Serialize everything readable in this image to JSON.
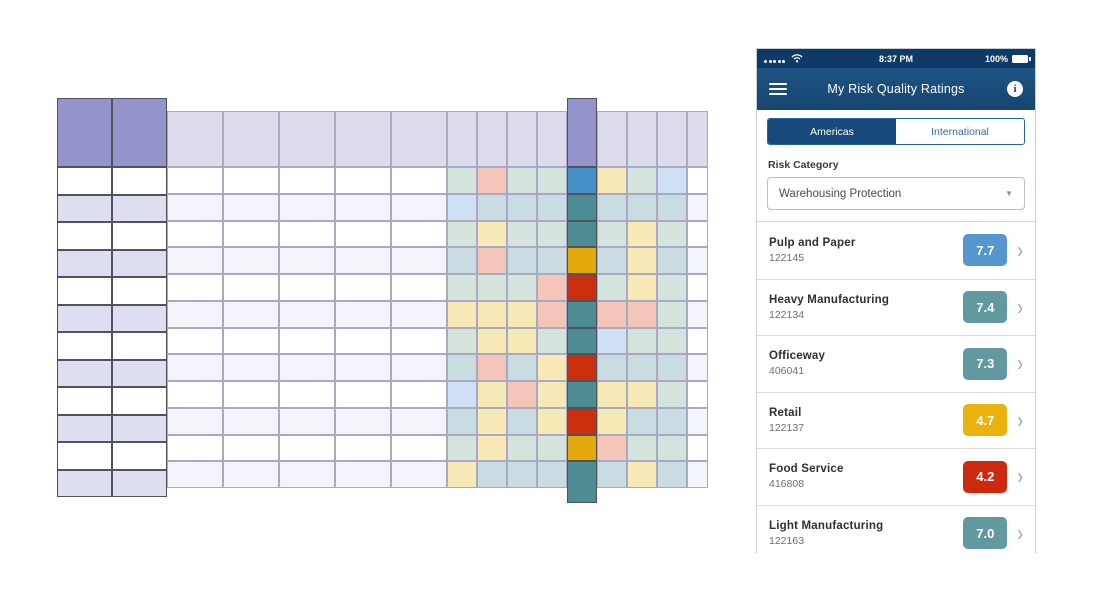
{
  "phone": {
    "status_bar": {
      "time": "8:37 PM",
      "battery": "100%"
    },
    "nav": {
      "title": "My Risk Quality Ratings"
    },
    "tabs": [
      {
        "label": "Americas",
        "selected": true
      },
      {
        "label": "International",
        "selected": false
      }
    ],
    "risk_category_label": "Risk Category",
    "risk_category_value": "Warehousing Protection",
    "ratings": [
      {
        "name": "Pulp and Paper",
        "id": "122145",
        "score": "7.7",
        "color": "#5596cf"
      },
      {
        "name": "Heavy Manufacturing",
        "id": "122134",
        "score": "7.4",
        "color": "#62989f"
      },
      {
        "name": "Officeway",
        "id": "406041",
        "score": "7.3",
        "color": "#62989f"
      },
      {
        "name": "Retail",
        "id": "122137",
        "score": "4.7",
        "color": "#eab20c"
      },
      {
        "name": "Food Service",
        "id": "416808",
        "score": "4.2",
        "color": "#cb2a0e"
      },
      {
        "name": "Light Manufacturing",
        "id": "122163",
        "score": "7.0",
        "color": "#62989f"
      }
    ],
    "colors": {
      "status_bar": "#0e3a66",
      "nav_top": "#1e5384",
      "nav_bottom": "#16466f",
      "tab_selected": "#17497a",
      "tab_text": "#2d6da6"
    }
  },
  "heatmap": {
    "palette": {
      "T": "#d4e3dc",
      "B": "#c9dce2",
      "D": "#cfe0f4",
      "S": "#f4c5b9",
      "Y": "#f7e9b6",
      "W": "#ffffff",
      "L": "#f3f3fa",
      "b": "#4691c7",
      "t": "#4d8c92",
      "g": "#e3a80b",
      "r": "#c92f0c"
    },
    "frozen": {
      "cols": 2,
      "rows": 12,
      "header_color": "#9494cb",
      "alt_colors": [
        "#ffffff",
        "#dedef1"
      ]
    },
    "header_color": "#dbdbec",
    "body_alt_colors": [
      "#ffffff",
      "#f3f3fa"
    ],
    "highlight": {
      "header_color": "#9494cb",
      "cells": [
        "b",
        "t",
        "t",
        "g",
        "r",
        "t",
        "t",
        "r",
        "t",
        "r",
        "g",
        "t"
      ]
    },
    "body_rows": [
      [
        "T",
        "S",
        "T",
        "T",
        "Y",
        "T",
        "D"
      ],
      [
        "D",
        "B",
        "B",
        "B",
        "B",
        "B",
        "B"
      ],
      [
        "T",
        "Y",
        "T",
        "T",
        "T",
        "Y",
        "T"
      ],
      [
        "B",
        "S",
        "B",
        "B",
        "B",
        "Y",
        "B"
      ],
      [
        "T",
        "T",
        "T",
        "S",
        "T",
        "Y",
        "T"
      ],
      [
        "Y",
        "Y",
        "Y",
        "S",
        "S",
        "S",
        "T"
      ],
      [
        "T",
        "Y",
        "Y",
        "T",
        "D",
        "T",
        "T"
      ],
      [
        "B",
        "S",
        "B",
        "Y",
        "B",
        "B",
        "B"
      ],
      [
        "D",
        "Y",
        "S",
        "Y",
        "Y",
        "Y",
        "T"
      ],
      [
        "B",
        "Y",
        "B",
        "Y",
        "Y",
        "B",
        "B"
      ],
      [
        "T",
        "Y",
        "T",
        "T",
        "S",
        "T",
        "T"
      ],
      [
        "Y",
        "B",
        "B",
        "B",
        "B",
        "Y",
        "B"
      ]
    ]
  }
}
